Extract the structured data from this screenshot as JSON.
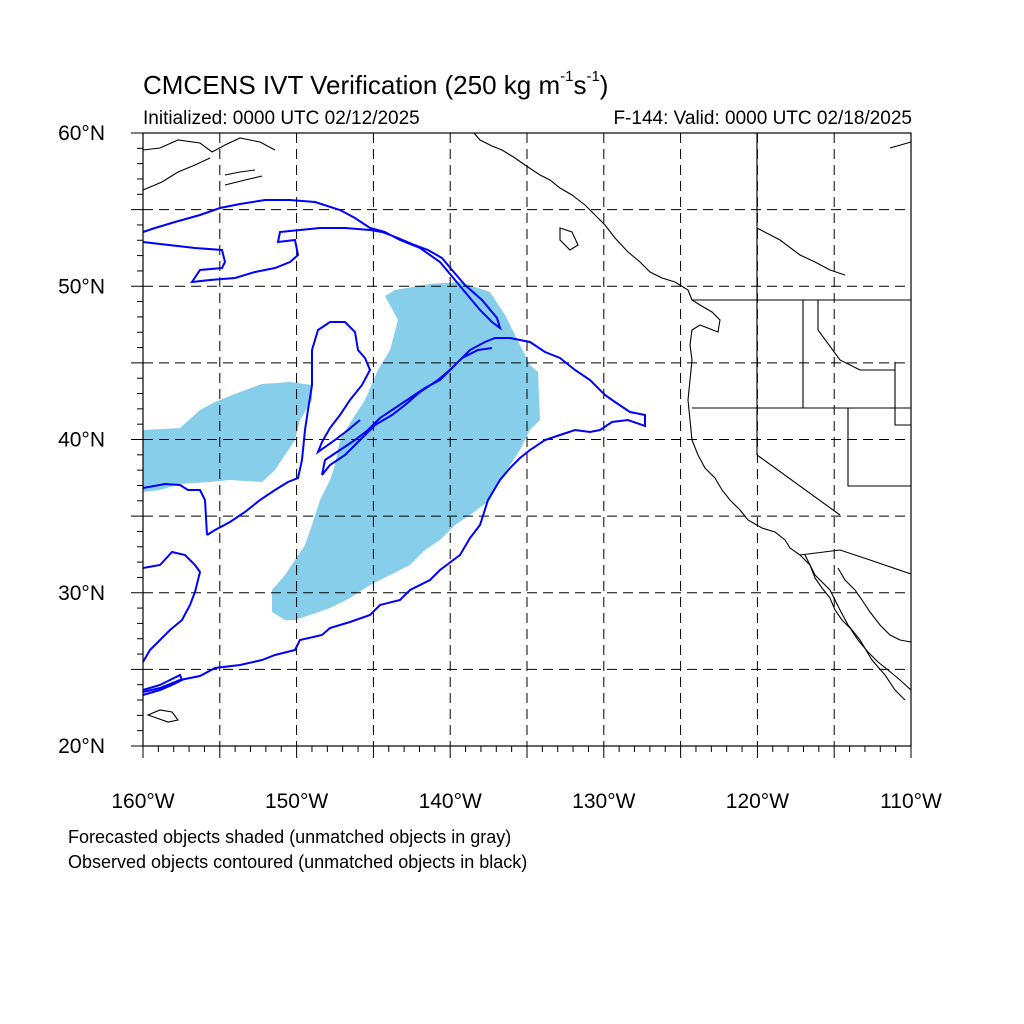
{
  "map": {
    "title_main": "CMCENS IVT Verification (250 kg m",
    "title_exp1": "-1",
    "title_mid": "s",
    "title_exp2": "-1",
    "title_close": ")",
    "subtitle_left": "Initialized: 0000 UTC 02/12/2025",
    "subtitle_right": "F-144: Valid: 0000 UTC 02/18/2025",
    "lon_range": [
      -160,
      -110
    ],
    "lat_range": [
      20,
      60
    ],
    "lon_ticks": [
      "160°W",
      "150°W",
      "140°W",
      "130°W",
      "120°W",
      "110°W"
    ],
    "lat_ticks": [
      "60°N",
      "50°N",
      "40°N",
      "30°N",
      "20°N"
    ],
    "grid": "dashed",
    "colors": {
      "forecast_fill": "#87ceeb",
      "observed_contour": "#0000ff",
      "coastline": "#000000"
    },
    "notes": [
      "Forecasted objects shaded (unmatched objects in gray)",
      "Observed objects contoured (unmatched objects in black)"
    ]
  }
}
